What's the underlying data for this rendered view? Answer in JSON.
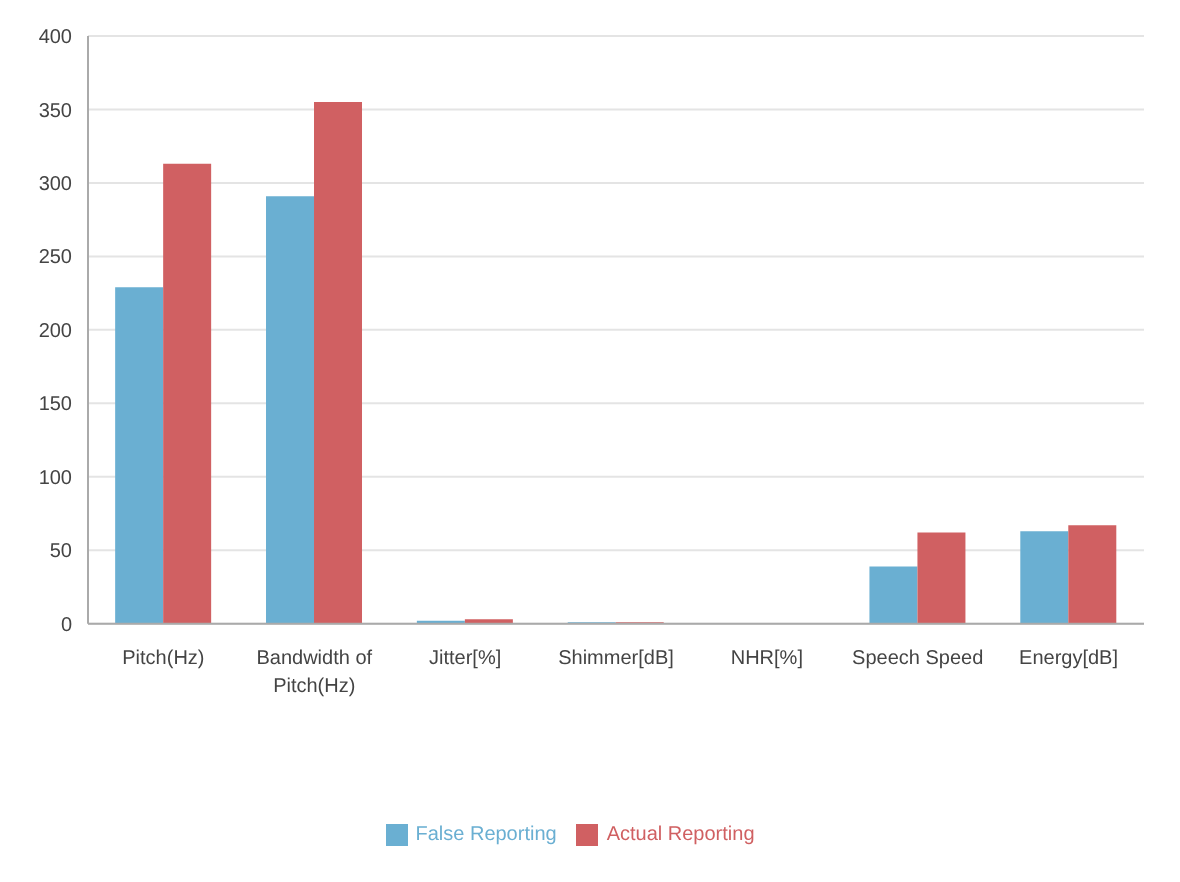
{
  "chart_data": {
    "type": "bar",
    "categories": [
      "Pitch(Hz)",
      "Bandwidth of Pitch(Hz)",
      "Jitter[%]",
      "Shimmer[dB]",
      "NHR[%]",
      "Speech Speed",
      "Energy[dB]"
    ],
    "series": [
      {
        "name": "False Reporting",
        "color": "#6aafd2",
        "values": [
          229,
          291,
          2,
          1,
          0,
          39,
          63
        ]
      },
      {
        "name": "Actual Reporting",
        "color": "#d06062",
        "values": [
          313,
          355,
          3,
          1,
          0,
          62,
          67
        ]
      }
    ],
    "ylim": [
      0,
      400
    ],
    "yticks": [
      0,
      50,
      100,
      150,
      200,
      250,
      300,
      350,
      400
    ],
    "grid": "y",
    "legend": "bottom"
  }
}
